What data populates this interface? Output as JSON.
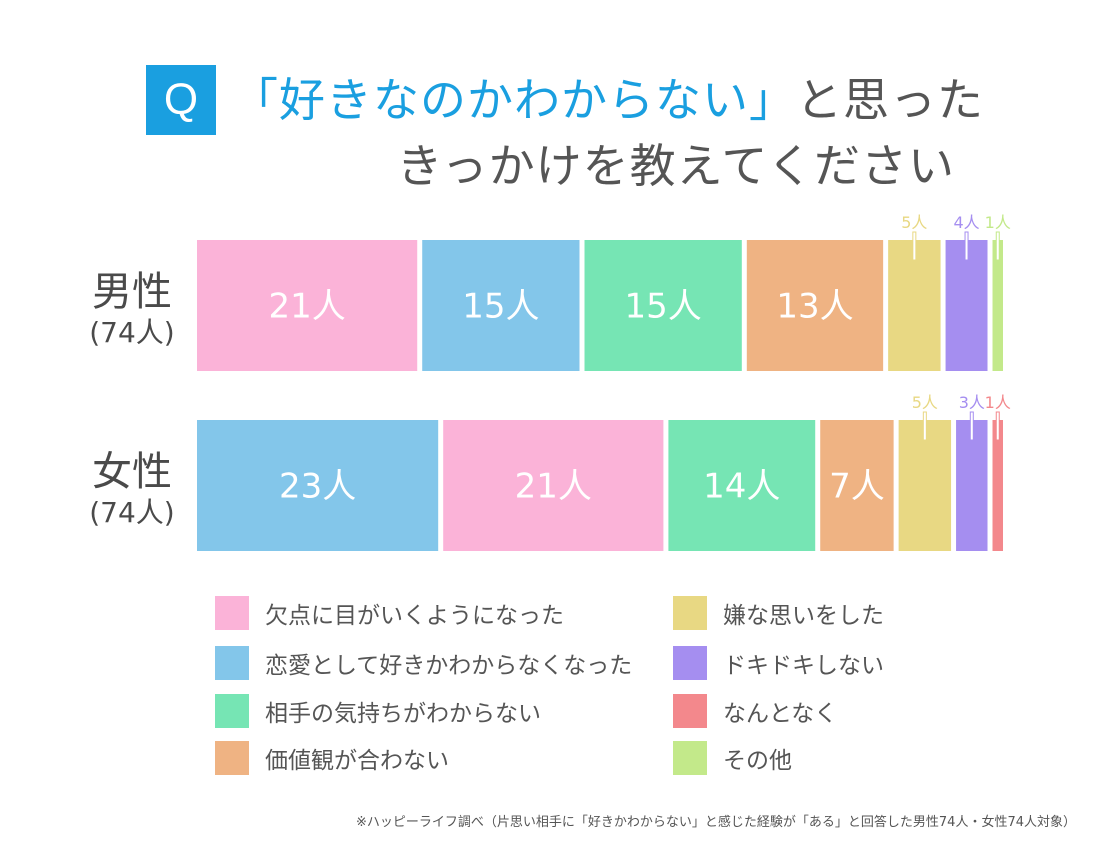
{
  "header": {
    "badge": "Q",
    "title_highlight": "「好きなのかわからない」",
    "title_line1_rest": "と思った",
    "title_line2": "きっかけを教えてください"
  },
  "colors": {
    "pink": "#fbb3d8",
    "blue": "#83c6ea",
    "green": "#76e5b4",
    "orange": "#efb383",
    "yellow": "#e8d883",
    "purple": "#a58ef0",
    "red": "#f3888c",
    "lime": "#c3e98a"
  },
  "chart_data": {
    "type": "bar",
    "orientation": "horizontal-stacked",
    "unit": "人",
    "categories": [
      "男性",
      "女性"
    ],
    "category_counts": [
      "(74人)",
      "(74人)"
    ],
    "series": [
      {
        "name": "欠点に目がいくようになった",
        "color": "#fbb3d8"
      },
      {
        "name": "恋愛として好きかわからなくなった",
        "color": "#83c6ea"
      },
      {
        "name": "相手の気持ちがわからない",
        "color": "#76e5b4"
      },
      {
        "name": "価値観が合わない",
        "color": "#efb383"
      },
      {
        "name": "嫌な思いをした",
        "color": "#e8d883"
      },
      {
        "name": "ドキドキしない",
        "color": "#a58ef0"
      },
      {
        "name": "なんとなく",
        "color": "#f3888c"
      },
      {
        "name": "その他",
        "color": "#c3e98a"
      }
    ],
    "rows": [
      {
        "category": "男性",
        "segments": [
          {
            "series": "欠点に目がいくようになった",
            "value": 21,
            "label": "21人"
          },
          {
            "series": "恋愛として好きかわからなくなった",
            "value": 15,
            "label": "15人"
          },
          {
            "series": "相手の気持ちがわからない",
            "value": 15,
            "label": "15人"
          },
          {
            "series": "価値観が合わない",
            "value": 13,
            "label": "13人"
          },
          {
            "series": "嫌な思いをした",
            "value": 5,
            "label": "5人",
            "outside": true
          },
          {
            "series": "ドキドキしない",
            "value": 4,
            "label": "4人",
            "outside": true
          },
          {
            "series": "その他",
            "value": 1,
            "label": "1人",
            "outside": true
          }
        ]
      },
      {
        "category": "女性",
        "segments": [
          {
            "series": "恋愛として好きかわからなくなった",
            "value": 23,
            "label": "23人"
          },
          {
            "series": "欠点に目がいくようになった",
            "value": 21,
            "label": "21人"
          },
          {
            "series": "相手の気持ちがわからない",
            "value": 14,
            "label": "14人"
          },
          {
            "series": "価値観が合わない",
            "value": 7,
            "label": "7人"
          },
          {
            "series": "嫌な思いをした",
            "value": 5,
            "label": "5人",
            "outside": true
          },
          {
            "series": "ドキドキしない",
            "value": 3,
            "label": "3人",
            "outside": true
          },
          {
            "series": "なんとなく",
            "value": 1,
            "label": "1人",
            "outside": true
          }
        ]
      }
    ]
  },
  "legend": [
    {
      "label": "欠点に目がいくようになった",
      "color": "#fbb3d8"
    },
    {
      "label": "恋愛として好きかわからなくなった",
      "color": "#83c6ea"
    },
    {
      "label": "相手の気持ちがわからない",
      "color": "#76e5b4"
    },
    {
      "label": "価値観が合わない",
      "color": "#efb383"
    },
    {
      "label": "嫌な思いをした",
      "color": "#e8d883"
    },
    {
      "label": "ドキドキしない",
      "color": "#a58ef0"
    },
    {
      "label": "なんとなく",
      "color": "#f3888c"
    },
    {
      "label": "その他",
      "color": "#c3e98a"
    }
  ],
  "footnote": "※ハッピーライフ調べ（片思い相手に「好きかわからない」と感じた経験が「ある」と回答した男性74人・女性74人対象）"
}
